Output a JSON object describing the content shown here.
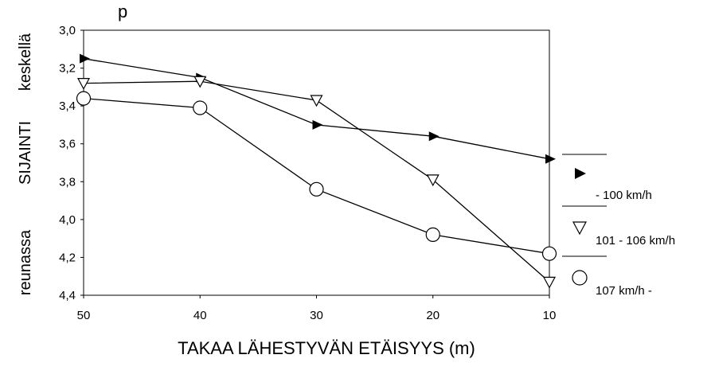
{
  "chart_data": {
    "type": "line",
    "top_text": "p",
    "xlabel": "TAKAA LÄHESTYVÄN ETÄISYYS (m)",
    "ylabel_left": "reunassa",
    "ylabel_middle": "SIJAINTI",
    "ylabel_right": "keskellä",
    "x_ticks": [
      "50",
      "40",
      "30",
      "20",
      "10"
    ],
    "y_ticks": [
      "3,0",
      "3,2",
      "3,4",
      "3,6",
      "3,8",
      "4,0",
      "4,2",
      "4,4"
    ],
    "x": [
      50,
      40,
      30,
      20,
      10
    ],
    "xlim": [
      50,
      10
    ],
    "ylim": [
      3.0,
      4.4
    ],
    "y_inverted": true,
    "grid": false,
    "legend_position": "right",
    "series": [
      {
        "name": "- 100 km/h",
        "marker": "filled-triangle-right",
        "values": [
          3.15,
          3.25,
          3.5,
          3.56,
          3.68
        ]
      },
      {
        "name": "101 - 106 km/h",
        "marker": "triangle-down-open",
        "values": [
          3.28,
          3.27,
          3.37,
          3.79,
          4.33
        ]
      },
      {
        "name": "107 km/h -",
        "marker": "circle-open",
        "values": [
          3.36,
          3.41,
          3.84,
          4.08,
          4.18
        ]
      }
    ]
  }
}
